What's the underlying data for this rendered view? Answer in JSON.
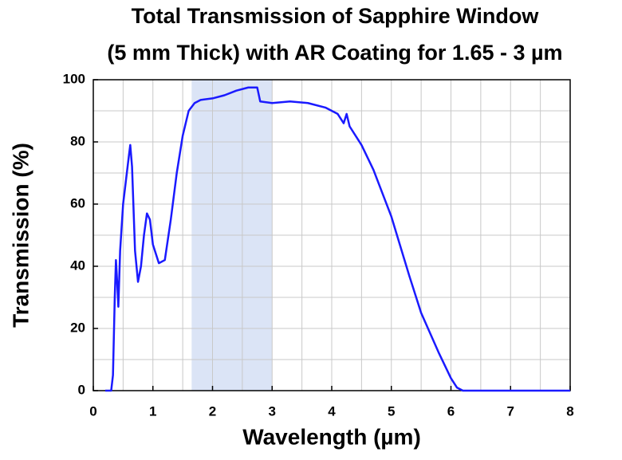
{
  "chart_data": {
    "type": "line",
    "title": [
      "Total Transmission of Sapphire Window",
      "(5 mm Thick) with AR Coating for 1.65 - 3 µm"
    ],
    "x_label": "Wavelength (µm)",
    "y_label": "Transmission (%)",
    "x": [
      0.2,
      0.3,
      0.33,
      0.36,
      0.38,
      0.4,
      0.42,
      0.45,
      0.5,
      0.55,
      0.6,
      0.62,
      0.65,
      0.7,
      0.75,
      0.8,
      0.85,
      0.9,
      0.95,
      1.0,
      1.1,
      1.2,
      1.3,
      1.4,
      1.5,
      1.6,
      1.7,
      1.8,
      2.0,
      2.2,
      2.4,
      2.6,
      2.75,
      2.8,
      3.0,
      3.3,
      3.6,
      3.9,
      4.1,
      4.2,
      4.25,
      4.3,
      4.5,
      4.7,
      5.0,
      5.3,
      5.5,
      5.8,
      6.0,
      6.1,
      6.2,
      7.0,
      8.0
    ],
    "series": [
      {
        "name": "Transmission",
        "color": "#1a1aff",
        "values": [
          0,
          0,
          5,
          30,
          42,
          35,
          27,
          45,
          60,
          68,
          76,
          79,
          72,
          45,
          35,
          40,
          50,
          57,
          55,
          47,
          41,
          42,
          55,
          70,
          82,
          90,
          92.5,
          93.5,
          94,
          95,
          96.5,
          97.5,
          97.5,
          93,
          92.5,
          93,
          92.5,
          91,
          89,
          86,
          89,
          85,
          79,
          71,
          56,
          37,
          25,
          12,
          4,
          1,
          0,
          0,
          0
        ]
      }
    ],
    "span": {
      "range": [
        1.65,
        3
      ],
      "color": "#dbe4f6"
    },
    "xlim": [
      0,
      8
    ],
    "ylim": [
      0,
      100
    ],
    "xticks": [
      0,
      1,
      2,
      3,
      4,
      5,
      6,
      7,
      8
    ],
    "yticks": [
      0,
      20,
      40,
      60,
      80,
      100
    ],
    "xminorticks": [
      0.5,
      1.5,
      2.5,
      3.5,
      4.5,
      5.5,
      6.5,
      7.5
    ],
    "yminorticks": [
      10,
      30,
      50,
      70,
      90
    ],
    "grid": true
  }
}
